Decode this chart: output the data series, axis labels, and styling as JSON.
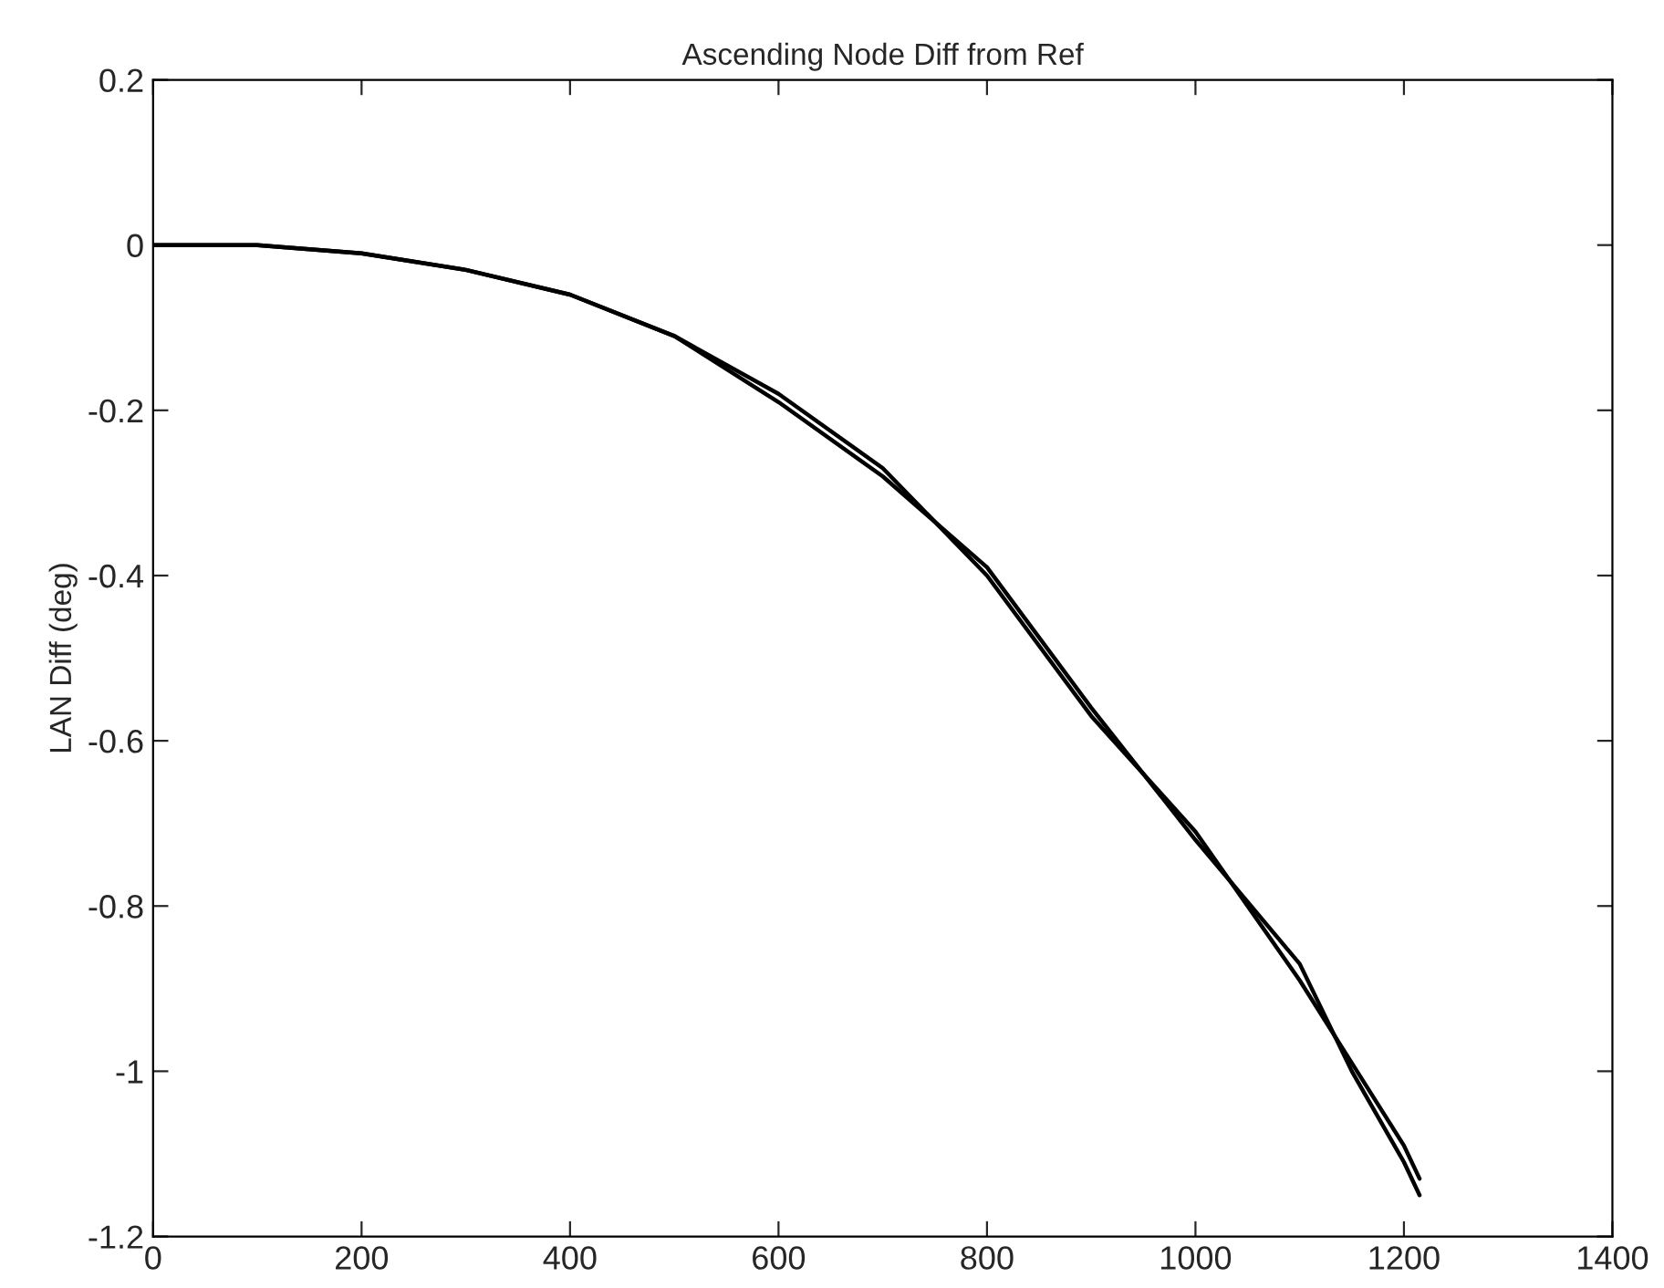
{
  "chart_data": {
    "type": "line",
    "title": "Ascending Node Diff from Ref",
    "ylabel": "LAN Diff (deg)",
    "x": [
      0,
      100,
      200,
      300,
      400,
      500,
      600,
      700,
      800,
      900,
      1000,
      1100,
      1150,
      1200,
      1215
    ],
    "series": [
      {
        "color": "#000000",
        "values": [
          0,
          0,
          -0.01,
          -0.03,
          -0.06,
          -0.11,
          -0.18,
          -0.27,
          -0.4,
          -0.57,
          -0.71,
          -0.89,
          -0.99,
          -1.09,
          -1.13
        ]
      },
      {
        "color": "#000000",
        "values": [
          0,
          0,
          -0.01,
          -0.03,
          -0.06,
          -0.11,
          -0.19,
          -0.28,
          -0.39,
          -0.56,
          -0.72,
          -0.87,
          -1.0,
          -1.11,
          -1.15
        ]
      }
    ],
    "xlim": [
      0,
      1400
    ],
    "xticks": [
      0,
      200,
      400,
      600,
      800,
      1000,
      1200,
      1400
    ],
    "ylim": [
      -1.2,
      0.2
    ],
    "yticks": [
      -1.2,
      -1,
      -0.8,
      -0.6,
      -0.4,
      -0.2,
      0,
      0.2
    ],
    "grid": false,
    "legend": false,
    "line_style": "solid",
    "marker": "none"
  }
}
